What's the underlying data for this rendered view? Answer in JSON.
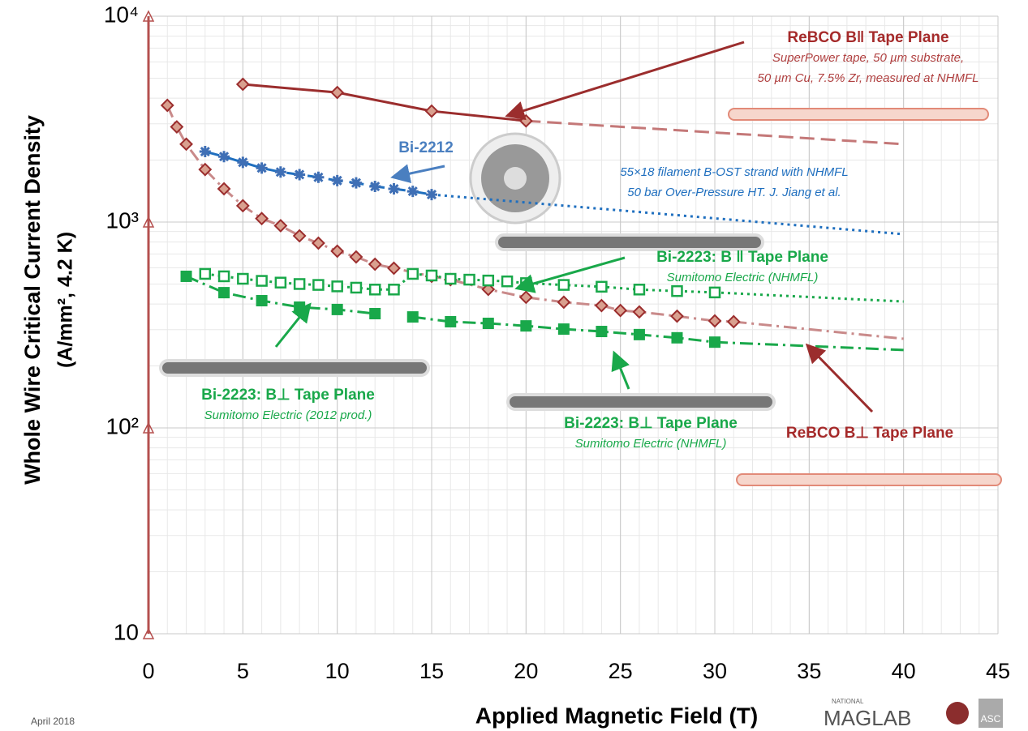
{
  "chart_data": {
    "type": "line",
    "log_y": true,
    "grid": true,
    "xlabel": "Applied Magnetic Field (T)",
    "ylabel": [
      "Whole Wire Critical Current Density",
      "(A/mm², 4.2 K)"
    ],
    "xlim": [
      0,
      45
    ],
    "xticks": [
      0,
      5,
      10,
      15,
      20,
      25,
      30,
      35,
      40,
      45
    ],
    "ylim": [
      10,
      10000
    ],
    "yticks": [
      10,
      {
        "value": 100,
        "label": "10²"
      },
      {
        "value": 1000,
        "label": "10³"
      },
      {
        "value": 10000,
        "label": "10⁴"
      }
    ],
    "series": [
      {
        "name": "ReBCO B‖ Tape Plane",
        "note": [
          "SuperPower tape, 50 µm substrate,",
          "50 µm Cu, 7.5% Zr, measured at NHMFL"
        ],
        "color": "#9b2d2d",
        "marker": "diamond",
        "line_style": "solid",
        "x": [
          5,
          10,
          15,
          20
        ],
        "values": [
          4670,
          4260,
          3460,
          3100
        ],
        "fit": {
          "color": "#c47878",
          "style": "dashed",
          "x": [
            20,
            40
          ],
          "values": [
            3100,
            2390
          ]
        }
      },
      {
        "name": "ReBCO B⊥ Tape Plane",
        "note": [],
        "color": "#9b2d2d",
        "marker": "diamond",
        "line_style": "dashdot",
        "x": [
          1,
          1.5,
          2,
          3,
          4,
          5,
          6,
          7,
          8,
          9,
          10,
          11,
          12,
          13,
          15,
          16,
          18,
          20,
          22,
          24,
          25,
          26,
          28,
          30,
          31
        ],
        "values": [
          3690,
          2900,
          2390,
          1800,
          1450,
          1200,
          1040,
          960,
          857,
          790,
          722,
          677,
          624,
          597,
          545,
          525,
          471,
          431,
          408,
          393,
          372,
          366,
          349,
          331,
          328
        ],
        "fit": {
          "color": "#c98a8a",
          "style": "dashdot",
          "x": [
            31,
            40
          ],
          "values": [
            328,
            271
          ]
        }
      },
      {
        "name": "Bi-2212",
        "note": [
          "55×18 filament B-OST strand with  NHMFL",
          "50 bar Over-Pressure HT. J. Jiang et al."
        ],
        "color": "#3f6fb5",
        "marker": "asterisk",
        "line_style": "dashed",
        "x": [
          3,
          4,
          5,
          6,
          7,
          8,
          9,
          10,
          11,
          12,
          13,
          14,
          15
        ],
        "values": [
          2200,
          2080,
          1950,
          1830,
          1750,
          1700,
          1650,
          1590,
          1550,
          1490,
          1450,
          1410,
          1360
        ],
        "fit": {
          "color": "#1f6fbf",
          "style": "dotted",
          "x": [
            15,
            40
          ],
          "values": [
            1360,
            873
          ]
        }
      },
      {
        "name": "Bi-2223: B ‖ Tape Plane",
        "note": [
          "Sumitomo Electric (NHMFL)"
        ],
        "color": "#19a84a",
        "marker": "open-square",
        "line_style": "dotted",
        "x": [
          3,
          4,
          5,
          6,
          7,
          8,
          9,
          10,
          11,
          12,
          13,
          14,
          15,
          16,
          17,
          18,
          19,
          20,
          22,
          24,
          26,
          28,
          30
        ],
        "values": [
          560,
          545,
          530,
          518,
          508,
          500,
          495,
          487,
          480,
          470,
          470,
          560,
          550,
          530,
          525,
          520,
          515,
          505,
          495,
          485,
          470,
          462,
          455
        ],
        "fit": {
          "color": "#19a84a",
          "style": "dotted",
          "x": [
            30,
            40
          ],
          "values": [
            455,
            411
          ]
        }
      },
      {
        "name": "Bi-2223: B⊥ Tape Plane",
        "note": [
          "Sumitomo Electric (2012 prod.)"
        ],
        "color": "#19a84a",
        "marker": "square",
        "line_style": "dashdot",
        "x": [
          2,
          4,
          6,
          8,
          10,
          12
        ],
        "values": [
          545,
          454,
          415,
          386,
          376,
          359
        ]
      },
      {
        "name": "Bi-2223: B⊥ Tape Plane",
        "note": [
          "Sumitomo Electric (NHMFL)"
        ],
        "color": "#19a84a",
        "marker": "square",
        "line_style": "dashdot",
        "x": [
          14,
          16,
          18,
          20,
          22,
          24,
          26,
          28,
          30
        ],
        "values": [
          346,
          328,
          322,
          313,
          302,
          294,
          284,
          274,
          261
        ],
        "fit": {
          "color": "#19a84a",
          "style": "dashdot",
          "x": [
            30,
            40
          ],
          "values": [
            261,
            239
          ]
        }
      }
    ],
    "footer": "April 2018",
    "logo": {
      "small": "NATIONAL",
      "main": "MAGLAB",
      "side": "ASC"
    }
  }
}
